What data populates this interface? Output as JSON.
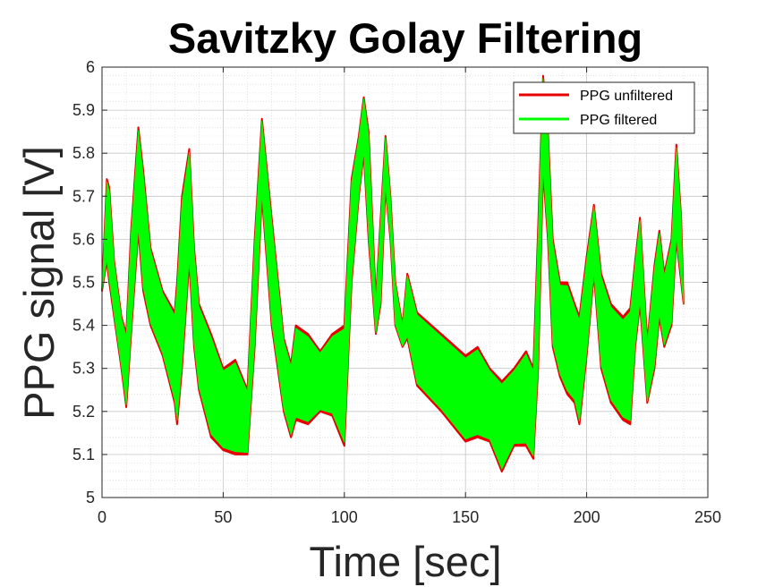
{
  "chart_data": {
    "type": "line",
    "title": "Savitzky Golay Filtering",
    "xlabel": "Time [sec]",
    "ylabel": "PPG signal [V]",
    "xlim": [
      0,
      250
    ],
    "ylim": [
      5,
      6
    ],
    "xticks": [
      0,
      50,
      100,
      150,
      200,
      250
    ],
    "yticks": [
      5,
      5.1,
      5.2,
      5.3,
      5.4,
      5.5,
      5.6,
      5.7,
      5.8,
      5.9,
      6
    ],
    "grid": true,
    "minor_grid": true,
    "legend_position": "top-right",
    "series": [
      {
        "name": "PPG unfiltered",
        "color": "#e60000",
        "envelope_t": [
          0,
          2,
          3,
          5,
          8,
          10,
          12,
          15,
          17,
          20,
          25,
          30,
          31,
          33,
          36,
          38,
          40,
          45,
          50,
          55,
          60,
          63,
          66,
          70,
          75,
          78,
          80,
          85,
          90,
          95,
          100,
          103,
          106,
          108,
          110,
          113,
          115,
          117,
          119,
          121,
          124,
          126,
          130,
          140,
          150,
          155,
          160,
          165,
          170,
          175,
          178,
          180,
          182,
          184,
          186,
          189,
          192,
          195,
          197,
          200,
          203,
          206,
          210,
          215,
          218,
          220,
          222,
          225,
          228,
          230,
          232,
          235,
          237,
          239,
          240
        ],
        "envelope_upper": [
          5.48,
          5.74,
          5.72,
          5.55,
          5.42,
          5.38,
          5.62,
          5.86,
          5.76,
          5.58,
          5.48,
          5.43,
          5.5,
          5.7,
          5.81,
          5.58,
          5.45,
          5.38,
          5.3,
          5.32,
          5.25,
          5.6,
          5.88,
          5.65,
          5.37,
          5.31,
          5.4,
          5.38,
          5.34,
          5.38,
          5.4,
          5.74,
          5.84,
          5.93,
          5.85,
          5.46,
          5.65,
          5.84,
          5.7,
          5.5,
          5.4,
          5.52,
          5.43,
          5.38,
          5.33,
          5.35,
          5.3,
          5.27,
          5.3,
          5.34,
          5.3,
          5.63,
          5.98,
          5.85,
          5.6,
          5.5,
          5.5,
          5.45,
          5.42,
          5.56,
          5.68,
          5.52,
          5.45,
          5.42,
          5.44,
          5.55,
          5.65,
          5.36,
          5.54,
          5.62,
          5.52,
          5.6,
          5.82,
          5.65,
          5.45
        ],
        "envelope_lower": [
          5.48,
          5.55,
          5.5,
          5.42,
          5.3,
          5.21,
          5.38,
          5.62,
          5.48,
          5.4,
          5.33,
          5.22,
          5.17,
          5.3,
          5.55,
          5.35,
          5.25,
          5.14,
          5.11,
          5.1,
          5.1,
          5.35,
          5.7,
          5.4,
          5.2,
          5.14,
          5.18,
          5.17,
          5.2,
          5.19,
          5.12,
          5.5,
          5.7,
          5.8,
          5.6,
          5.38,
          5.45,
          5.72,
          5.6,
          5.4,
          5.35,
          5.37,
          5.26,
          5.2,
          5.13,
          5.14,
          5.13,
          5.06,
          5.12,
          5.12,
          5.09,
          5.3,
          5.76,
          5.6,
          5.35,
          5.28,
          5.24,
          5.22,
          5.17,
          5.33,
          5.52,
          5.3,
          5.22,
          5.18,
          5.17,
          5.35,
          5.45,
          5.22,
          5.3,
          5.42,
          5.35,
          5.4,
          5.6,
          5.5,
          5.45
        ]
      },
      {
        "name": "PPG filtered",
        "color": "#00ff00",
        "shares_envelope_with": "PPG unfiltered"
      }
    ]
  }
}
